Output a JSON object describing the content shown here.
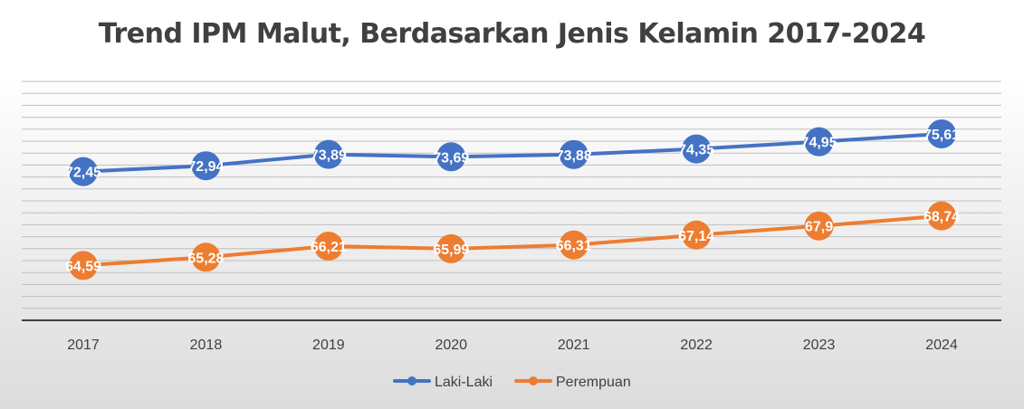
{
  "chart_data": {
    "type": "line",
    "title": "Trend IPM Malut, Berdasarkan Jenis Kelamin 2017-2024",
    "xlabel": "",
    "ylabel": "",
    "categories": [
      "2017",
      "2018",
      "2019",
      "2020",
      "2021",
      "2022",
      "2023",
      "2024"
    ],
    "series": [
      {
        "name": "Laki-Laki",
        "color": "#4472C4",
        "values": [
          72.45,
          72.94,
          73.89,
          73.69,
          73.88,
          74.35,
          74.95,
          75.61
        ],
        "labels": [
          "72,45",
          "72,94",
          "73,89",
          "73,69",
          "73,88",
          "74,35",
          "74,95",
          "75,61"
        ]
      },
      {
        "name": "Perempuan",
        "color": "#ED7D31",
        "values": [
          64.59,
          65.28,
          66.21,
          65.99,
          66.31,
          67.14,
          67.9,
          68.74
        ],
        "labels": [
          "64,59",
          "65,28",
          "66,21",
          "65,99",
          "66,31",
          "67,14",
          "67,9",
          "68,74"
        ]
      }
    ],
    "ylim": [
      60,
      80
    ],
    "grid": true,
    "legend_position": "bottom"
  }
}
